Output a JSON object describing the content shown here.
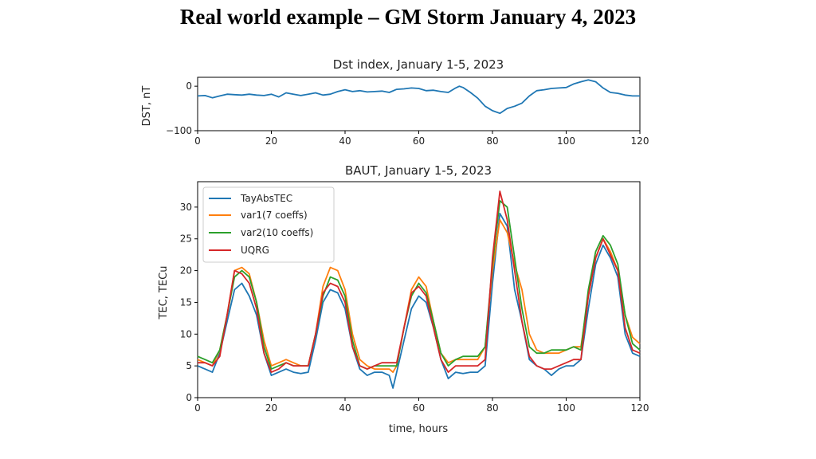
{
  "slide": {
    "title": "Real world example – GM Storm January 4, 2023"
  },
  "colors": {
    "blue": "#1f77b4",
    "orange": "#ff7f0e",
    "green": "#2ca02c",
    "red": "#d62728"
  },
  "chart_data": [
    {
      "type": "line",
      "title": "Dst index, January 1-5, 2023",
      "xlabel": "",
      "ylabel": "DST, nT",
      "xlim": [
        0,
        120
      ],
      "ylim": [
        -100,
        20
      ],
      "xticks": [
        "0",
        "20",
        "40",
        "60",
        "80",
        "100",
        "120"
      ],
      "yticks": [
        "0",
        "−100"
      ],
      "series": [
        {
          "name": "Dst",
          "x": [
            0,
            2,
            4,
            6,
            8,
            10,
            12,
            14,
            16,
            18,
            20,
            22,
            24,
            26,
            28,
            30,
            32,
            34,
            36,
            38,
            40,
            42,
            44,
            46,
            48,
            50,
            52,
            54,
            56,
            58,
            60,
            62,
            64,
            66,
            68,
            70,
            71,
            72,
            74,
            76,
            78,
            80,
            82,
            84,
            86,
            88,
            90,
            92,
            94,
            96,
            98,
            100,
            102,
            104,
            106,
            108,
            110,
            112,
            114,
            116,
            118,
            120
          ],
          "y": [
            -22,
            -21,
            -26,
            -22,
            -18,
            -19,
            -20,
            -18,
            -20,
            -21,
            -18,
            -24,
            -15,
            -18,
            -21,
            -18,
            -15,
            -20,
            -18,
            -12,
            -8,
            -12,
            -10,
            -13,
            -12,
            -11,
            -14,
            -7,
            -6,
            -4,
            -5,
            -10,
            -9,
            -12,
            -14,
            -4,
            0,
            -3,
            -14,
            -27,
            -45,
            -55,
            -61,
            -50,
            -45,
            -38,
            -22,
            -10,
            -8,
            -5,
            -4,
            -3,
            5,
            10,
            14,
            10,
            -4,
            -14,
            -16,
            -20,
            -22,
            -22
          ]
        }
      ]
    },
    {
      "type": "line",
      "title": "BAUT, January 1-5, 2023",
      "xlabel": "time, hours",
      "ylabel": "TEC, TECu",
      "xlim": [
        0,
        120
      ],
      "ylim": [
        0,
        34
      ],
      "xticks": [
        "0",
        "20",
        "40",
        "60",
        "80",
        "100",
        "120"
      ],
      "yticks": [
        "0",
        "5",
        "10",
        "15",
        "20",
        "25",
        "30"
      ],
      "x": [
        0,
        2,
        4,
        6,
        8,
        10,
        12,
        14,
        16,
        18,
        20,
        22,
        24,
        26,
        28,
        30,
        32,
        34,
        36,
        38,
        40,
        42,
        44,
        46,
        48,
        50,
        52,
        53,
        54,
        56,
        58,
        60,
        62,
        64,
        66,
        68,
        70,
        72,
        74,
        76,
        78,
        80,
        82,
        84,
        86,
        88,
        90,
        92,
        94,
        96,
        98,
        100,
        102,
        104,
        106,
        108,
        110,
        112,
        114,
        116,
        118,
        120
      ],
      "series": [
        {
          "name": "TayAbsTEC",
          "values": [
            5,
            4.5,
            4,
            7,
            12,
            17,
            18,
            16,
            13,
            7,
            3.5,
            4,
            4.5,
            4,
            3.8,
            4,
            9,
            15,
            17,
            16.5,
            14,
            8,
            4.5,
            3.5,
            4,
            4,
            3.5,
            1.5,
            4,
            9,
            14,
            16,
            15,
            11,
            6,
            3,
            4,
            3.8,
            4,
            4,
            5,
            18,
            29,
            27,
            17,
            12,
            6,
            5,
            4.5,
            3.5,
            4.5,
            5,
            5,
            6,
            14,
            21,
            24,
            22,
            19,
            10,
            7,
            6.5
          ]
        },
        {
          "name": "var1(7 coeffs)",
          "values": [
            6,
            5.5,
            5,
            7.5,
            13,
            20,
            20.5,
            19.5,
            15,
            9,
            5,
            5.5,
            6,
            5.5,
            5,
            5,
            10,
            17.5,
            20.5,
            20,
            17,
            10,
            6,
            5,
            4.5,
            4.5,
            4.5,
            4,
            5,
            11,
            17,
            19,
            17.5,
            12,
            7,
            5.5,
            6,
            6,
            6,
            6,
            8,
            20,
            28,
            26,
            21,
            17,
            10,
            7.5,
            7,
            7,
            7,
            7.5,
            8,
            8,
            16,
            22,
            25,
            23,
            20,
            13,
            9.5,
            8.5
          ]
        },
        {
          "name": "var2(10 coeffs)",
          "values": [
            6.5,
            6,
            5.5,
            7.5,
            13,
            19,
            20,
            19,
            15,
            8,
            4.5,
            5,
            5.5,
            5,
            5,
            5,
            10,
            16,
            19,
            18.5,
            16,
            9,
            5,
            4.5,
            5,
            5,
            5,
            5,
            5,
            11,
            16,
            18,
            16.5,
            12,
            7,
            5,
            6,
            6.5,
            6.5,
            6.5,
            8,
            21,
            31,
            30,
            22,
            14,
            8,
            7,
            7,
            7.5,
            7.5,
            7.5,
            8,
            7.5,
            17,
            23,
            25.5,
            24,
            21,
            13,
            8.5,
            7.5
          ]
        },
        {
          "name": "UQRG",
          "values": [
            5.5,
            5.5,
            5,
            6.5,
            13,
            20,
            19.5,
            18,
            14,
            7,
            4,
            4.5,
            5.5,
            5,
            5,
            5,
            10,
            16.5,
            18,
            17.5,
            15,
            8,
            5,
            4.5,
            5,
            5.5,
            5.5,
            5.5,
            5.5,
            11,
            16.5,
            17.5,
            16,
            11,
            6,
            4,
            5,
            5,
            5,
            5,
            6,
            22,
            32.5,
            28,
            20,
            12,
            6.5,
            5,
            4.5,
            4.5,
            5,
            5.5,
            6,
            6,
            16,
            22,
            25,
            22.5,
            20,
            11,
            7.5,
            7
          ]
        }
      ],
      "legend": {
        "placement": "upper-left",
        "entries": [
          "TayAbsTEC",
          "var1(7 coeffs)",
          "var2(10 coeffs)",
          "UQRG"
        ]
      }
    }
  ]
}
